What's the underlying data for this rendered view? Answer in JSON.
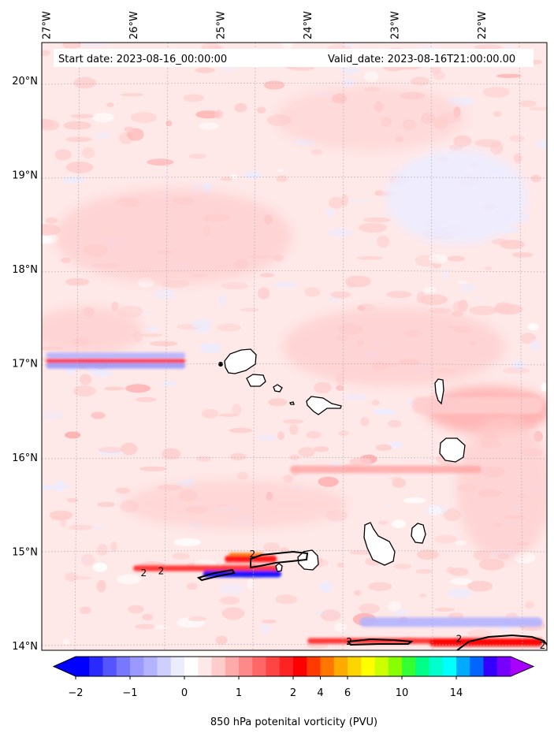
{
  "info": {
    "start_label": "Start date: 2023-08-16_00:00:00",
    "valid_label": "Valid_date: 2023-08-16T21:00:00.00"
  },
  "chart_data": {
    "type": "heatmap",
    "title": "",
    "xlabel": "",
    "ylabel": "",
    "colorbar_label": "850 hPa potenital vorticity (PVU)",
    "xlim": [
      -27.05,
      -21.25
    ],
    "ylim": [
      13.95,
      20.4
    ],
    "x_ticks": [
      {
        "value": -27,
        "label": "27°W"
      },
      {
        "value": -26,
        "label": "26°W"
      },
      {
        "value": -25,
        "label": "25°W"
      },
      {
        "value": -24,
        "label": "24°W"
      },
      {
        "value": -23,
        "label": "23°W"
      },
      {
        "value": -22,
        "label": "22°W"
      }
    ],
    "y_ticks": [
      {
        "value": 14,
        "label": "14°N"
      },
      {
        "value": 15,
        "label": "15°N"
      },
      {
        "value": 16,
        "label": "16°N"
      },
      {
        "value": 17,
        "label": "17°N"
      },
      {
        "value": 18,
        "label": "18°N"
      },
      {
        "value": 19,
        "label": "19°N"
      },
      {
        "value": 20,
        "label": "20°N"
      }
    ],
    "colorbar": {
      "levels": [
        -2,
        -1.75,
        -1.5,
        -1.25,
        -1,
        -0.75,
        -0.5,
        -0.25,
        0,
        0.25,
        0.5,
        0.75,
        1,
        1.25,
        1.5,
        1.75,
        2,
        3,
        4,
        5,
        6,
        7,
        8,
        9,
        10,
        11,
        12,
        13,
        14,
        15,
        16
      ],
      "colors": [
        "#0000ff",
        "#2a2aff",
        "#5555ff",
        "#7777ff",
        "#9999ff",
        "#b3b3ff",
        "#cfcfff",
        "#ececff",
        "#ffffff",
        "#ffe8e8",
        "#ffcccc",
        "#ffaaaa",
        "#ff8888",
        "#ff6666",
        "#ff4444",
        "#ff2222",
        "#ff0000",
        "#ff3a00",
        "#ff7700",
        "#ffaa00",
        "#ffd400",
        "#ffff00",
        "#ccff00",
        "#88ff00",
        "#33ff33",
        "#00ff88",
        "#00ffcc",
        "#00ffff",
        "#00aaff",
        "#0066ff",
        "#3300ff",
        "#7700ff"
      ],
      "under_color": "#0000ff",
      "over_color": "#aa00ff",
      "tick_labels": [
        {
          "value": -2,
          "label": "−2"
        },
        {
          "value": -1,
          "label": "−1"
        },
        {
          "value": 0,
          "label": "0"
        },
        {
          "value": 1,
          "label": "1"
        },
        {
          "value": 2,
          "label": "2"
        },
        {
          "value": 4,
          "label": "4"
        },
        {
          "value": 6,
          "label": "6"
        },
        {
          "value": 10,
          "label": "10"
        },
        {
          "value": 14,
          "label": "14"
        }
      ]
    },
    "contour_levels": [
      2
    ],
    "contour_labels": [
      {
        "lon": -25.68,
        "lat": 14.79,
        "text": "2"
      },
      {
        "lon": -25.88,
        "lat": 14.77,
        "text": "2"
      },
      {
        "lon": -24.63,
        "lat": 14.97,
        "text": "2"
      },
      {
        "lon": -23.52,
        "lat": 14.04,
        "text": "2"
      },
      {
        "lon": -22.26,
        "lat": 14.07,
        "text": "2"
      },
      {
        "lon": -21.3,
        "lat": 14.0,
        "text": "2"
      }
    ],
    "pv_features": [
      {
        "lon0": -27.0,
        "lon1": -25.4,
        "lat": 17.02,
        "width": 0.05,
        "value": 1.9
      },
      {
        "lon0": -27.0,
        "lon1": -25.4,
        "lat": 16.97,
        "width": 0.06,
        "value": -1.0
      },
      {
        "lon0": -27.0,
        "lon1": -25.4,
        "lat": 17.08,
        "width": 0.06,
        "value": -0.6
      },
      {
        "lon0": -26.0,
        "lon1": -24.3,
        "lat": 14.82,
        "width": 0.06,
        "value": 1.8
      },
      {
        "lon0": -25.2,
        "lon1": -24.3,
        "lat": 14.76,
        "width": 0.07,
        "value": -2.0
      },
      {
        "lon0": -24.95,
        "lon1": -24.35,
        "lat": 14.92,
        "width": 0.07,
        "value": 2.5
      },
      {
        "lon0": -24.9,
        "lon1": -24.5,
        "lat": 14.97,
        "width": 0.03,
        "value": 4.5
      },
      {
        "lon0": -24.2,
        "lon1": -22.0,
        "lat": 15.87,
        "width": 0.08,
        "value": 0.8
      },
      {
        "lon0": -22.8,
        "lon1": -21.3,
        "lat": 16.55,
        "width": 0.18,
        "value": 0.7
      },
      {
        "lon0": -23.4,
        "lon1": -21.3,
        "lat": 14.25,
        "width": 0.1,
        "value": -0.7
      },
      {
        "lon0": -24.0,
        "lon1": -21.3,
        "lat": 14.05,
        "width": 0.06,
        "value": 1.8
      },
      {
        "lon0": -22.6,
        "lon1": -21.3,
        "lat": 14.03,
        "width": 0.08,
        "value": 2.2
      }
    ]
  }
}
